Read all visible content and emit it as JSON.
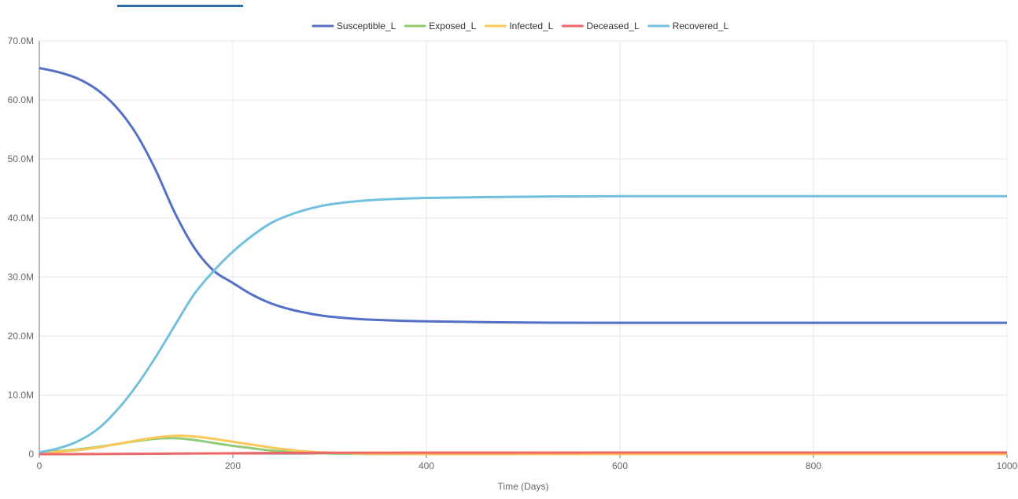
{
  "tab_indicator_color": "#2b6ea6",
  "chart_data": {
    "type": "line",
    "title": "",
    "xlabel": "Time (Days)",
    "ylabel": "",
    "xlim": [
      0,
      1000
    ],
    "ylim": [
      0,
      70000000
    ],
    "x_ticks": [
      0,
      200,
      400,
      600,
      800,
      1000
    ],
    "y_ticks": [
      0,
      10000000,
      20000000,
      30000000,
      40000000,
      50000000,
      60000000,
      70000000
    ],
    "x_tick_labels": [
      "0",
      "200",
      "400",
      "600",
      "800",
      "1000"
    ],
    "y_tick_labels": [
      "0",
      "10.0M",
      "20.0M",
      "30.0M",
      "40.0M",
      "50.0M",
      "60.0M",
      "70.0M"
    ],
    "grid": true,
    "legend_position": "top-center",
    "series": [
      {
        "name": "Susceptible_L",
        "color": "#5470c6",
        "points": [
          [
            0,
            65400000
          ],
          [
            20,
            64700000
          ],
          [
            40,
            63600000
          ],
          [
            60,
            61700000
          ],
          [
            80,
            58700000
          ],
          [
            100,
            54300000
          ],
          [
            120,
            48200000
          ],
          [
            140,
            40900000
          ],
          [
            160,
            35000000
          ],
          [
            180,
            31100000
          ],
          [
            200,
            29000000
          ],
          [
            220,
            27000000
          ],
          [
            240,
            25500000
          ],
          [
            260,
            24500000
          ],
          [
            280,
            23800000
          ],
          [
            300,
            23300000
          ],
          [
            340,
            22800000
          ],
          [
            400,
            22500000
          ],
          [
            500,
            22300000
          ],
          [
            600,
            22250000
          ],
          [
            800,
            22250000
          ],
          [
            1000,
            22250000
          ]
        ]
      },
      {
        "name": "Exposed_L",
        "color": "#91cc75",
        "points": [
          [
            0,
            300000
          ],
          [
            20,
            500000
          ],
          [
            40,
            800000
          ],
          [
            60,
            1200000
          ],
          [
            80,
            1700000
          ],
          [
            100,
            2200000
          ],
          [
            120,
            2600000
          ],
          [
            140,
            2700000
          ],
          [
            160,
            2400000
          ],
          [
            180,
            1900000
          ],
          [
            200,
            1400000
          ],
          [
            220,
            1000000
          ],
          [
            240,
            600000
          ],
          [
            260,
            400000
          ],
          [
            280,
            200000
          ],
          [
            300,
            100000
          ],
          [
            340,
            20000
          ],
          [
            400,
            0
          ],
          [
            600,
            0
          ],
          [
            800,
            0
          ],
          [
            1000,
            0
          ]
        ]
      },
      {
        "name": "Infected_L",
        "color": "#fac858",
        "points": [
          [
            0,
            200000
          ],
          [
            20,
            400000
          ],
          [
            40,
            700000
          ],
          [
            60,
            1100000
          ],
          [
            80,
            1700000
          ],
          [
            100,
            2300000
          ],
          [
            120,
            2800000
          ],
          [
            140,
            3100000
          ],
          [
            160,
            3000000
          ],
          [
            180,
            2600000
          ],
          [
            200,
            2100000
          ],
          [
            220,
            1600000
          ],
          [
            240,
            1100000
          ],
          [
            260,
            700000
          ],
          [
            280,
            400000
          ],
          [
            300,
            250000
          ],
          [
            340,
            80000
          ],
          [
            400,
            20000
          ],
          [
            600,
            0
          ],
          [
            800,
            0
          ],
          [
            1000,
            0
          ]
        ]
      },
      {
        "name": "Deceased_L",
        "color": "#ee6666",
        "points": [
          [
            0,
            0
          ],
          [
            50,
            10000
          ],
          [
            100,
            50000
          ],
          [
            150,
            100000
          ],
          [
            200,
            150000
          ],
          [
            250,
            200000
          ],
          [
            300,
            230000
          ],
          [
            400,
            250000
          ],
          [
            600,
            260000
          ],
          [
            800,
            260000
          ],
          [
            1000,
            260000
          ]
        ]
      },
      {
        "name": "Recovered_L",
        "color": "#73c0de",
        "points": [
          [
            0,
            300000
          ],
          [
            20,
            1000000
          ],
          [
            40,
            2200000
          ],
          [
            60,
            4200000
          ],
          [
            80,
            7400000
          ],
          [
            100,
            11500000
          ],
          [
            120,
            16400000
          ],
          [
            140,
            21800000
          ],
          [
            160,
            27100000
          ],
          [
            180,
            31000000
          ],
          [
            200,
            34300000
          ],
          [
            220,
            37000000
          ],
          [
            240,
            39200000
          ],
          [
            260,
            40600000
          ],
          [
            280,
            41600000
          ],
          [
            300,
            42300000
          ],
          [
            340,
            43000000
          ],
          [
            400,
            43400000
          ],
          [
            500,
            43600000
          ],
          [
            600,
            43700000
          ],
          [
            800,
            43700000
          ],
          [
            1000,
            43700000
          ]
        ]
      }
    ]
  }
}
